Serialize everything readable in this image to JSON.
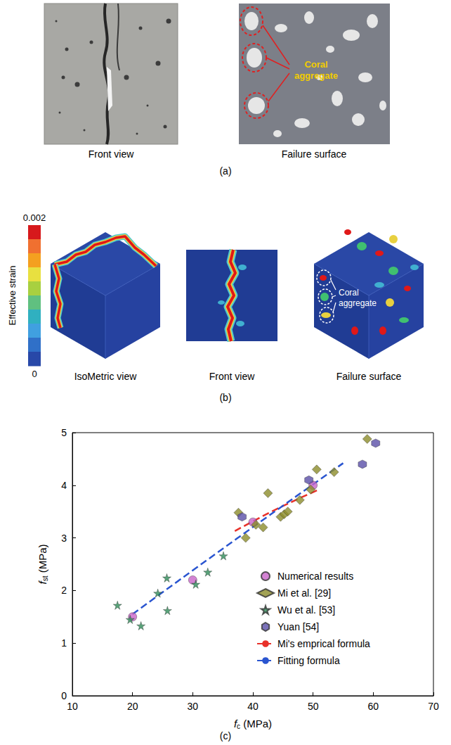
{
  "panel_a": {
    "label": "(a)",
    "images": [
      {
        "caption": "Front view"
      },
      {
        "caption": "Failure surface",
        "annotation": "Coral aggregate"
      }
    ]
  },
  "panel_b": {
    "label": "(b)",
    "colorbar": {
      "title": "Effective strain",
      "range": [
        0,
        0.002
      ],
      "ticks": [
        0,
        0.002
      ]
    },
    "images": [
      {
        "caption": "IsoMetric view"
      },
      {
        "caption": "Front view"
      },
      {
        "caption": "Failure surface",
        "annotation": "Coral aggregate"
      }
    ]
  },
  "chart_data": {
    "type": "scatter",
    "panel_label": "(c)",
    "xlabel": {
      "base": "f",
      "sub": "c",
      "rest": " (MPa)"
    },
    "ylabel": {
      "base": "f",
      "sub": "st",
      "rest": " (MPa)"
    },
    "xlim": [
      10,
      70
    ],
    "xticks": [
      10,
      20,
      30,
      40,
      50,
      60,
      70
    ],
    "ylim": [
      0,
      5
    ],
    "yticks": [
      0,
      1,
      2,
      3,
      4,
      5
    ],
    "grid": false,
    "legend": "lower right",
    "series": [
      {
        "name": "Numerical results",
        "type": "scatter",
        "marker": "circle",
        "color": "#c864c8",
        "x": [
          20,
          30,
          40,
          50
        ],
        "values": [
          1.5,
          2.2,
          3.3,
          4.0
        ]
      },
      {
        "name": "Mi et al. [29]",
        "type": "scatter",
        "marker": "diamond",
        "color": "#8c8c2a",
        "x": [
          37.6,
          38.8,
          40.5,
          41.7,
          42.5,
          44.6,
          45.2,
          45.8,
          47.8,
          49.6,
          50.6,
          53.5,
          59.0
        ],
        "values": [
          3.48,
          3.0,
          3.25,
          3.2,
          3.85,
          3.4,
          3.45,
          3.5,
          3.72,
          3.92,
          4.3,
          4.25,
          4.88
        ]
      },
      {
        "name": "Wu et al. [53]",
        "type": "scatter",
        "marker": "star",
        "color": "#2e8b57",
        "x": [
          17.5,
          19.6,
          21.4,
          24.2,
          25.7,
          25.8,
          30.5,
          32.5,
          35.1
        ],
        "values": [
          1.72,
          1.45,
          1.33,
          1.95,
          2.24,
          1.62,
          2.12,
          2.35,
          2.66
        ]
      },
      {
        "name": "Yuan [54]",
        "type": "scatter",
        "marker": "hexagon",
        "color": "#5a4fa8",
        "x": [
          38.2,
          49.3,
          58.2,
          60.4
        ],
        "values": [
          3.4,
          4.1,
          4.4,
          4.8
        ]
      },
      {
        "name": "Mi's emprical formula",
        "type": "line",
        "line_style": "dashed",
        "color": "#e8312a",
        "x": [
          37,
          44,
          51
        ],
        "values": [
          3.13,
          3.55,
          3.92
        ]
      },
      {
        "name": "Fitting formula",
        "type": "line",
        "line_style": "dashed",
        "color": "#2a55d0",
        "x": [
          20,
          37.5,
          55
        ],
        "values": [
          1.55,
          3.0,
          4.42
        ]
      }
    ]
  }
}
